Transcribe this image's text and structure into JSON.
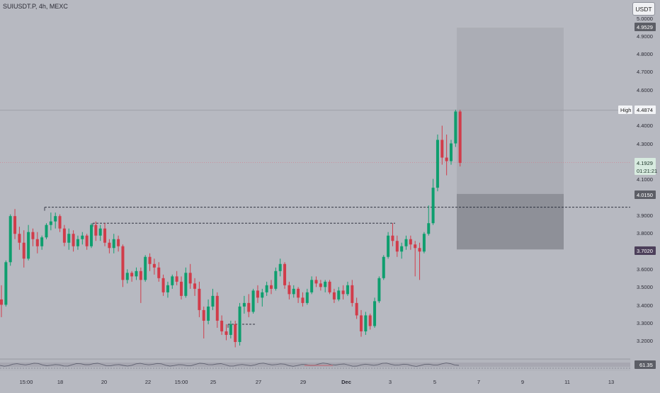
{
  "header": {
    "symbol": "SUIUSDT.P, 4h, MEXC",
    "currency": "USDT"
  },
  "colors": {
    "background": "#b7b9c1",
    "up": "#0e9e6e",
    "down": "#d13c4a",
    "target_zone": "#abadb5",
    "stop_zone": "#8e9098",
    "grid": "#acaeb6",
    "rsi_band": "#9c9aa6"
  },
  "price_axis": {
    "ticks": [
      "5.0000",
      "4.9000",
      "4.8000",
      "4.7000",
      "4.6000",
      "4.5000",
      "4.4000",
      "4.3000",
      "4.1000",
      "3.9000",
      "3.8000",
      "3.6000",
      "3.5000",
      "3.4000",
      "3.3000",
      "3.2000"
    ],
    "markers": {
      "target": "4.9529",
      "high_label": "High",
      "high": "4.4874",
      "last_price": "4.1929",
      "countdown": "01:21:21",
      "entry": "4.0150",
      "stop": "3.7020"
    }
  },
  "time_axis": {
    "ticks": [
      "15:00",
      "18",
      "20",
      "22",
      "15:00",
      "25",
      "27",
      "29",
      "Dec",
      "3",
      "5",
      "7",
      "9",
      "11",
      "13"
    ]
  },
  "rsi": {
    "value": "61.35"
  },
  "chart_data": {
    "type": "candlestick",
    "timeframe": "4h",
    "ylim": [
      3.15,
      5.0
    ],
    "candles": [
      {
        "o": 3.42,
        "h": 3.5,
        "l": 3.32,
        "c": 3.39
      },
      {
        "o": 3.39,
        "h": 3.64,
        "l": 3.38,
        "c": 3.63
      },
      {
        "o": 3.63,
        "h": 3.9,
        "l": 3.61,
        "c": 3.89
      },
      {
        "o": 3.89,
        "h": 3.93,
        "l": 3.76,
        "c": 3.79
      },
      {
        "o": 3.79,
        "h": 3.83,
        "l": 3.7,
        "c": 3.74
      },
      {
        "o": 3.74,
        "h": 3.81,
        "l": 3.6,
        "c": 3.65
      },
      {
        "o": 3.65,
        "h": 3.84,
        "l": 3.64,
        "c": 3.8
      },
      {
        "o": 3.8,
        "h": 3.82,
        "l": 3.72,
        "c": 3.76
      },
      {
        "o": 3.76,
        "h": 3.8,
        "l": 3.68,
        "c": 3.72
      },
      {
        "o": 3.72,
        "h": 3.78,
        "l": 3.7,
        "c": 3.77
      },
      {
        "o": 3.77,
        "h": 3.85,
        "l": 3.76,
        "c": 3.84
      },
      {
        "o": 3.84,
        "h": 3.91,
        "l": 3.81,
        "c": 3.86
      },
      {
        "o": 3.86,
        "h": 3.91,
        "l": 3.82,
        "c": 3.89
      },
      {
        "o": 3.89,
        "h": 3.9,
        "l": 3.8,
        "c": 3.82
      },
      {
        "o": 3.82,
        "h": 3.84,
        "l": 3.72,
        "c": 3.74
      },
      {
        "o": 3.74,
        "h": 3.82,
        "l": 3.7,
        "c": 3.79
      },
      {
        "o": 3.79,
        "h": 3.81,
        "l": 3.69,
        "c": 3.72
      },
      {
        "o": 3.72,
        "h": 3.78,
        "l": 3.7,
        "c": 3.76
      },
      {
        "o": 3.76,
        "h": 3.8,
        "l": 3.73,
        "c": 3.78
      },
      {
        "o": 3.78,
        "h": 3.79,
        "l": 3.7,
        "c": 3.72
      },
      {
        "o": 3.72,
        "h": 3.85,
        "l": 3.71,
        "c": 3.84
      },
      {
        "o": 3.84,
        "h": 3.86,
        "l": 3.75,
        "c": 3.78
      },
      {
        "o": 3.78,
        "h": 3.84,
        "l": 3.75,
        "c": 3.82
      },
      {
        "o": 3.82,
        "h": 3.85,
        "l": 3.72,
        "c": 3.74
      },
      {
        "o": 3.74,
        "h": 3.76,
        "l": 3.68,
        "c": 3.71
      },
      {
        "o": 3.71,
        "h": 3.79,
        "l": 3.68,
        "c": 3.76
      },
      {
        "o": 3.76,
        "h": 3.78,
        "l": 3.69,
        "c": 3.72
      },
      {
        "o": 3.72,
        "h": 3.73,
        "l": 3.49,
        "c": 3.53
      },
      {
        "o": 3.53,
        "h": 3.59,
        "l": 3.51,
        "c": 3.57
      },
      {
        "o": 3.57,
        "h": 3.58,
        "l": 3.52,
        "c": 3.55
      },
      {
        "o": 3.55,
        "h": 3.6,
        "l": 3.53,
        "c": 3.58
      },
      {
        "o": 3.58,
        "h": 3.6,
        "l": 3.4,
        "c": 3.53
      },
      {
        "o": 3.53,
        "h": 3.67,
        "l": 3.52,
        "c": 3.66
      },
      {
        "o": 3.66,
        "h": 3.68,
        "l": 3.58,
        "c": 3.62
      },
      {
        "o": 3.62,
        "h": 3.65,
        "l": 3.56,
        "c": 3.6
      },
      {
        "o": 3.6,
        "h": 3.63,
        "l": 3.52,
        "c": 3.54
      },
      {
        "o": 3.54,
        "h": 3.56,
        "l": 3.44,
        "c": 3.46
      },
      {
        "o": 3.46,
        "h": 3.52,
        "l": 3.43,
        "c": 3.5
      },
      {
        "o": 3.5,
        "h": 3.56,
        "l": 3.48,
        "c": 3.55
      },
      {
        "o": 3.55,
        "h": 3.58,
        "l": 3.5,
        "c": 3.52
      },
      {
        "o": 3.52,
        "h": 3.55,
        "l": 3.42,
        "c": 3.44
      },
      {
        "o": 3.44,
        "h": 3.6,
        "l": 3.43,
        "c": 3.57
      },
      {
        "o": 3.57,
        "h": 3.62,
        "l": 3.48,
        "c": 3.51
      },
      {
        "o": 3.51,
        "h": 3.54,
        "l": 3.44,
        "c": 3.48
      },
      {
        "o": 3.48,
        "h": 3.52,
        "l": 3.32,
        "c": 3.36
      },
      {
        "o": 3.36,
        "h": 3.38,
        "l": 3.2,
        "c": 3.3
      },
      {
        "o": 3.3,
        "h": 3.42,
        "l": 3.28,
        "c": 3.38
      },
      {
        "o": 3.38,
        "h": 3.48,
        "l": 3.36,
        "c": 3.44
      },
      {
        "o": 3.44,
        "h": 3.46,
        "l": 3.26,
        "c": 3.3
      },
      {
        "o": 3.3,
        "h": 3.33,
        "l": 3.22,
        "c": 3.24
      },
      {
        "o": 3.24,
        "h": 3.28,
        "l": 3.19,
        "c": 3.22
      },
      {
        "o": 3.22,
        "h": 3.3,
        "l": 3.2,
        "c": 3.28
      },
      {
        "o": 3.28,
        "h": 3.3,
        "l": 3.15,
        "c": 3.18
      },
      {
        "o": 3.18,
        "h": 3.4,
        "l": 3.16,
        "c": 3.38
      },
      {
        "o": 3.38,
        "h": 3.44,
        "l": 3.34,
        "c": 3.4
      },
      {
        "o": 3.4,
        "h": 3.45,
        "l": 3.32,
        "c": 3.35
      },
      {
        "o": 3.35,
        "h": 3.48,
        "l": 3.34,
        "c": 3.47
      },
      {
        "o": 3.47,
        "h": 3.5,
        "l": 3.4,
        "c": 3.43
      },
      {
        "o": 3.43,
        "h": 3.48,
        "l": 3.38,
        "c": 3.46
      },
      {
        "o": 3.46,
        "h": 3.52,
        "l": 3.44,
        "c": 3.5
      },
      {
        "o": 3.5,
        "h": 3.53,
        "l": 3.45,
        "c": 3.48
      },
      {
        "o": 3.48,
        "h": 3.6,
        "l": 3.47,
        "c": 3.58
      },
      {
        "o": 3.58,
        "h": 3.65,
        "l": 3.55,
        "c": 3.62
      },
      {
        "o": 3.62,
        "h": 3.63,
        "l": 3.48,
        "c": 3.5
      },
      {
        "o": 3.5,
        "h": 3.52,
        "l": 3.42,
        "c": 3.45
      },
      {
        "o": 3.45,
        "h": 3.5,
        "l": 3.43,
        "c": 3.48
      },
      {
        "o": 3.48,
        "h": 3.49,
        "l": 3.4,
        "c": 3.43
      },
      {
        "o": 3.43,
        "h": 3.46,
        "l": 3.38,
        "c": 3.4
      },
      {
        "o": 3.4,
        "h": 3.48,
        "l": 3.39,
        "c": 3.46
      },
      {
        "o": 3.46,
        "h": 3.55,
        "l": 3.45,
        "c": 3.53
      },
      {
        "o": 3.53,
        "h": 3.55,
        "l": 3.49,
        "c": 3.51
      },
      {
        "o": 3.51,
        "h": 3.53,
        "l": 3.47,
        "c": 3.49
      },
      {
        "o": 3.49,
        "h": 3.53,
        "l": 3.46,
        "c": 3.52
      },
      {
        "o": 3.52,
        "h": 3.53,
        "l": 3.45,
        "c": 3.46
      },
      {
        "o": 3.46,
        "h": 3.48,
        "l": 3.4,
        "c": 3.42
      },
      {
        "o": 3.42,
        "h": 3.49,
        "l": 3.41,
        "c": 3.47
      },
      {
        "o": 3.47,
        "h": 3.5,
        "l": 3.42,
        "c": 3.45
      },
      {
        "o": 3.45,
        "h": 3.52,
        "l": 3.44,
        "c": 3.5
      },
      {
        "o": 3.5,
        "h": 3.53,
        "l": 3.38,
        "c": 3.4
      },
      {
        "o": 3.4,
        "h": 3.43,
        "l": 3.31,
        "c": 3.33
      },
      {
        "o": 3.33,
        "h": 3.36,
        "l": 3.21,
        "c": 3.24
      },
      {
        "o": 3.24,
        "h": 3.35,
        "l": 3.22,
        "c": 3.33
      },
      {
        "o": 3.33,
        "h": 3.34,
        "l": 3.25,
        "c": 3.27
      },
      {
        "o": 3.27,
        "h": 3.43,
        "l": 3.26,
        "c": 3.41
      },
      {
        "o": 3.41,
        "h": 3.55,
        "l": 3.4,
        "c": 3.54
      },
      {
        "o": 3.54,
        "h": 3.67,
        "l": 3.53,
        "c": 3.66
      },
      {
        "o": 3.66,
        "h": 3.8,
        "l": 3.65,
        "c": 3.78
      },
      {
        "o": 3.78,
        "h": 3.85,
        "l": 3.72,
        "c": 3.75
      },
      {
        "o": 3.75,
        "h": 3.78,
        "l": 3.66,
        "c": 3.69
      },
      {
        "o": 3.69,
        "h": 3.74,
        "l": 3.65,
        "c": 3.72
      },
      {
        "o": 3.72,
        "h": 3.78,
        "l": 3.7,
        "c": 3.76
      },
      {
        "o": 3.76,
        "h": 3.78,
        "l": 3.7,
        "c": 3.73
      },
      {
        "o": 3.73,
        "h": 3.75,
        "l": 3.55,
        "c": 3.71
      },
      {
        "o": 3.71,
        "h": 3.74,
        "l": 3.53,
        "c": 3.69
      },
      {
        "o": 3.69,
        "h": 3.8,
        "l": 3.68,
        "c": 3.79
      },
      {
        "o": 3.79,
        "h": 3.95,
        "l": 3.78,
        "c": 3.85
      },
      {
        "o": 3.85,
        "h": 4.1,
        "l": 3.84,
        "c": 4.05
      },
      {
        "o": 4.05,
        "h": 4.35,
        "l": 4.03,
        "c": 4.32
      },
      {
        "o": 4.32,
        "h": 4.4,
        "l": 4.18,
        "c": 4.22
      },
      {
        "o": 4.22,
        "h": 4.35,
        "l": 4.12,
        "c": 4.2
      },
      {
        "o": 4.2,
        "h": 4.32,
        "l": 4.18,
        "c": 4.3
      },
      {
        "o": 4.3,
        "h": 4.49,
        "l": 4.28,
        "c": 4.48
      },
      {
        "o": 4.48,
        "h": 4.49,
        "l": 4.17,
        "c": 4.19
      }
    ],
    "price_lines": [
      {
        "label": "High",
        "value": 4.4874
      },
      {
        "label": "last",
        "value": 4.1929
      }
    ],
    "position": {
      "target": 4.9529,
      "entry": 4.015,
      "stop": 3.702
    },
    "levels": [
      3.94,
      3.85,
      3.28
    ],
    "rsi_value": 61.35
  }
}
